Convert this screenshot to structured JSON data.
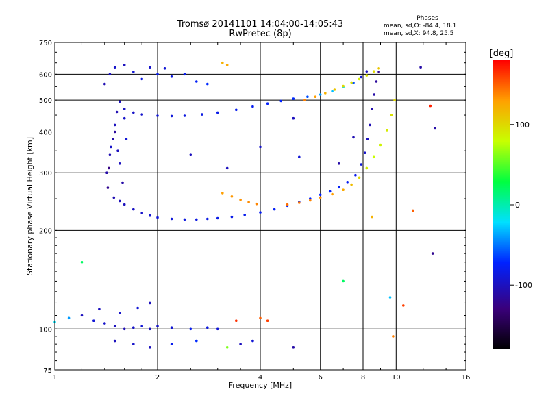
{
  "header": {
    "title_line1": "Tromsø 20141101 14:04:00-14:05:43",
    "title_line2": "RwPretec (8p)",
    "phases_title": "Phases",
    "phases_line1": "mean, sd,O: -84.4, 18.1",
    "phases_line2": "mean, sd,X:  94.8, 25.5"
  },
  "colorbar": {
    "label": "[deg]",
    "min": -180,
    "max": 180,
    "ticks": [
      {
        "value": 100,
        "label": "100"
      },
      {
        "value": 0,
        "label": "0"
      },
      {
        "value": -100,
        "label": "-100"
      }
    ]
  },
  "chart_data": {
    "type": "scatter",
    "xlabel": "Frequency [MHz]",
    "ylabel": "Stationary phase Virtual Height [km]",
    "x_scale": "log",
    "y_scale": "log",
    "xlim": [
      1,
      16
    ],
    "ylim": [
      75,
      750
    ],
    "x_ticks": [
      {
        "value": 1,
        "label": "1"
      },
      {
        "value": 2,
        "label": "2"
      },
      {
        "value": 4,
        "label": "4"
      },
      {
        "value": 6,
        "label": "6"
      },
      {
        "value": 8,
        "label": "8"
      },
      {
        "value": 10,
        "label": "10"
      },
      {
        "value": 16,
        "label": "16"
      }
    ],
    "y_ticks": [
      {
        "value": 75,
        "label": "75"
      },
      {
        "value": 100,
        "label": "100"
      },
      {
        "value": 200,
        "label": "200"
      },
      {
        "value": 300,
        "label": "300"
      },
      {
        "value": 400,
        "label": "400"
      },
      {
        "value": 500,
        "label": "500"
      },
      {
        "value": 600,
        "label": "600"
      },
      {
        "value": 750,
        "label": "750"
      }
    ],
    "grid": true,
    "series": [
      {
        "color_by": "phase_deg",
        "points": [
          [
            1.49,
            252,
            -105
          ],
          [
            1.55,
            246,
            -102
          ],
          [
            1.6,
            240,
            -100
          ],
          [
            1.7,
            232,
            -98
          ],
          [
            1.8,
            226,
            -95
          ],
          [
            1.9,
            222,
            -92
          ],
          [
            2.0,
            219,
            -90
          ],
          [
            2.2,
            217,
            -88
          ],
          [
            2.4,
            216,
            -86
          ],
          [
            2.6,
            216,
            -85
          ],
          [
            2.8,
            217,
            -84
          ],
          [
            3.0,
            218,
            -83
          ],
          [
            3.3,
            220,
            -82
          ],
          [
            3.6,
            223,
            -80
          ],
          [
            4.0,
            227,
            -78
          ],
          [
            4.4,
            232,
            -76
          ],
          [
            4.8,
            238,
            -74
          ],
          [
            5.2,
            244,
            -72
          ],
          [
            5.6,
            250,
            -72
          ],
          [
            6.0,
            257,
            -73
          ],
          [
            6.4,
            263,
            -74
          ],
          [
            6.8,
            271,
            -75
          ],
          [
            7.2,
            281,
            -78
          ],
          [
            7.6,
            295,
            -82
          ],
          [
            7.9,
            318,
            -88
          ],
          [
            8.1,
            345,
            -95
          ],
          [
            8.25,
            380,
            -100
          ],
          [
            8.38,
            420,
            -104
          ],
          [
            8.5,
            470,
            -108
          ],
          [
            8.62,
            520,
            -110
          ],
          [
            8.75,
            570,
            -115
          ],
          [
            8.9,
            610,
            -120
          ],
          [
            1.55,
            495,
            -100
          ],
          [
            1.6,
            470,
            -98
          ],
          [
            1.7,
            458,
            -96
          ],
          [
            1.8,
            452,
            -94
          ],
          [
            2.0,
            448,
            -90
          ],
          [
            2.2,
            447,
            -88
          ],
          [
            2.4,
            448,
            -86
          ],
          [
            2.7,
            452,
            -84
          ],
          [
            3.0,
            458,
            -82
          ],
          [
            3.4,
            467,
            -80
          ],
          [
            3.8,
            478,
            -78
          ],
          [
            4.2,
            488,
            -75
          ],
          [
            4.6,
            497,
            -72
          ],
          [
            5.0,
            505,
            -70
          ],
          [
            5.5,
            512,
            -60
          ],
          [
            6.0,
            520,
            -40
          ],
          [
            6.5,
            532,
            -30
          ],
          [
            7.0,
            548,
            -20
          ],
          [
            7.5,
            565,
            -60
          ],
          [
            7.9,
            588,
            -90
          ],
          [
            8.2,
            612,
            -100
          ],
          [
            5.4,
            500,
            140
          ],
          [
            5.8,
            512,
            130
          ],
          [
            6.2,
            525,
            120
          ],
          [
            6.6,
            538,
            110
          ],
          [
            7.0,
            552,
            100
          ],
          [
            7.4,
            566,
            95
          ],
          [
            7.8,
            580,
            90
          ],
          [
            8.2,
            595,
            95
          ],
          [
            8.6,
            612,
            100
          ],
          [
            8.9,
            625,
            110
          ],
          [
            3.1,
            260,
            130
          ],
          [
            3.3,
            254,
            132
          ],
          [
            3.5,
            248,
            134
          ],
          [
            3.7,
            244,
            136
          ],
          [
            3.9,
            241,
            138
          ],
          [
            4.8,
            240,
            145
          ],
          [
            5.2,
            243,
            142
          ],
          [
            5.6,
            247,
            138
          ],
          [
            6.0,
            252,
            135
          ],
          [
            6.5,
            258,
            130
          ],
          [
            7.0,
            266,
            125
          ],
          [
            7.4,
            276,
            115
          ],
          [
            7.8,
            290,
            100
          ],
          [
            8.2,
            310,
            90
          ],
          [
            8.6,
            335,
            80
          ],
          [
            9.0,
            365,
            85
          ],
          [
            9.4,
            405,
            90
          ],
          [
            9.7,
            450,
            95
          ],
          [
            9.9,
            500,
            100
          ],
          [
            1.4,
            560,
            -105
          ],
          [
            1.45,
            600,
            -100
          ],
          [
            1.5,
            630,
            -95
          ],
          [
            1.6,
            640,
            -100
          ],
          [
            1.7,
            610,
            -90
          ],
          [
            1.8,
            580,
            -85
          ],
          [
            1.9,
            630,
            -95
          ],
          [
            2.0,
            600,
            -80
          ],
          [
            2.1,
            625,
            -90
          ],
          [
            2.2,
            590,
            -85
          ],
          [
            2.4,
            600,
            -80
          ],
          [
            2.6,
            570,
            -75
          ],
          [
            2.8,
            560,
            -70
          ],
          [
            1.42,
            300,
            -110
          ],
          [
            1.45,
            340,
            -105
          ],
          [
            1.48,
            380,
            -110
          ],
          [
            1.5,
            420,
            -100
          ],
          [
            1.52,
            460,
            -105
          ],
          [
            1.43,
            270,
            -120
          ],
          [
            1.46,
            360,
            -95
          ],
          [
            1.5,
            400,
            -115
          ],
          [
            1.55,
            320,
            -100
          ],
          [
            1.58,
            280,
            -110
          ],
          [
            1.6,
            440,
            -95
          ],
          [
            1.62,
            380,
            -90
          ],
          [
            1.44,
            310,
            -125
          ],
          [
            1.53,
            350,
            -100
          ],
          [
            1.0,
            105,
            -20
          ],
          [
            1.1,
            108,
            -40
          ],
          [
            1.2,
            110,
            -100
          ],
          [
            1.3,
            106,
            -90
          ],
          [
            1.4,
            104,
            -95
          ],
          [
            1.5,
            102,
            -100
          ],
          [
            1.6,
            100,
            -105
          ],
          [
            1.7,
            101,
            -95
          ],
          [
            1.8,
            102,
            -90
          ],
          [
            1.9,
            100,
            -100
          ],
          [
            2.0,
            102,
            -95
          ],
          [
            2.2,
            101,
            -90
          ],
          [
            2.5,
            100,
            -80
          ],
          [
            2.8,
            101,
            -85
          ],
          [
            3.0,
            100,
            -90
          ],
          [
            1.35,
            115,
            -100
          ],
          [
            1.55,
            112,
            -95
          ],
          [
            1.75,
            116,
            -90
          ],
          [
            1.9,
            120,
            -100
          ],
          [
            1.5,
            92,
            -100
          ],
          [
            1.7,
            90,
            -95
          ],
          [
            1.9,
            88,
            -100
          ],
          [
            2.2,
            90,
            -80
          ],
          [
            2.6,
            92,
            -70
          ],
          [
            3.2,
            88,
            60
          ],
          [
            3.5,
            90,
            -100
          ],
          [
            3.8,
            92,
            -90
          ],
          [
            5.0,
            88,
            -110
          ],
          [
            3.1,
            650,
            120
          ],
          [
            3.2,
            640,
            125
          ],
          [
            4.0,
            108,
            150
          ],
          [
            4.2,
            106,
            160
          ],
          [
            3.4,
            106,
            165
          ],
          [
            1.2,
            160,
            20
          ],
          [
            2.5,
            340,
            -100
          ],
          [
            6.8,
            320,
            -110
          ],
          [
            7.5,
            385,
            -105
          ],
          [
            8.5,
            220,
            120
          ],
          [
            11.2,
            230,
            150
          ],
          [
            11.8,
            630,
            -110
          ],
          [
            12.6,
            480,
            170
          ],
          [
            13.0,
            410,
            -110
          ],
          [
            12.8,
            170,
            -120
          ],
          [
            9.6,
            125,
            -30
          ],
          [
            10.5,
            118,
            160
          ],
          [
            9.8,
            95,
            140
          ],
          [
            7.0,
            140,
            20
          ],
          [
            5.0,
            440,
            -100
          ],
          [
            4.0,
            360,
            -95
          ],
          [
            5.2,
            335,
            -90
          ],
          [
            3.2,
            310,
            -100
          ]
        ]
      }
    ]
  }
}
